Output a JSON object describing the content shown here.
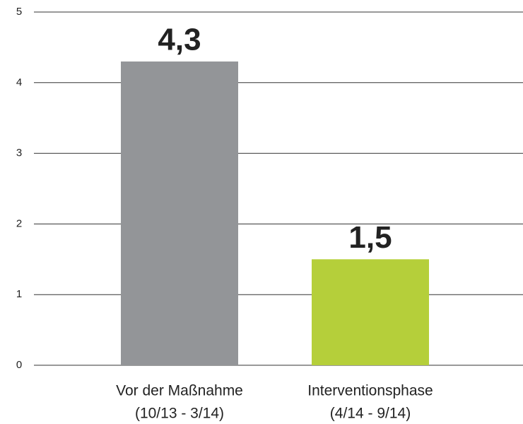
{
  "chart_data": {
    "type": "bar",
    "categories": [
      [
        "Vor der Maßnahme",
        "(10/13 - 3/14)"
      ],
      [
        "Interventionsphase",
        "(4/14 - 9/14)"
      ]
    ],
    "values": [
      4.3,
      1.5
    ],
    "value_labels": [
      "4,3",
      "1,5"
    ],
    "colors": [
      "#939598",
      "#b5cf3a"
    ],
    "ylim": [
      0,
      5
    ],
    "yticks": [
      0,
      1,
      2,
      3,
      4,
      5
    ],
    "grid": true
  }
}
